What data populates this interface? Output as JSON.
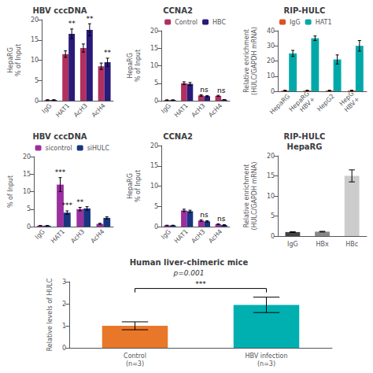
{
  "chart_data": [
    {
      "type": "bar",
      "title": "HBV cccDNA",
      "categories": [
        "IgG",
        "HAT1",
        "AcH3",
        "AcH4"
      ],
      "series": [
        {
          "color": "#b03060",
          "values": [
            0.2,
            11.5,
            13.0,
            8.5
          ],
          "errors": [
            0.05,
            0.8,
            1.0,
            0.8
          ]
        },
        {
          "color": "#2a1a7a",
          "values": [
            0.2,
            16.5,
            17.5,
            9.5
          ],
          "errors": [
            0.05,
            1.2,
            1.5,
            1.0
          ]
        }
      ],
      "ylabel": "HepaRG\n% of Input",
      "ylim": [
        0,
        20
      ],
      "yticks": [
        0,
        5,
        10,
        15,
        20
      ],
      "annotations": [
        {
          "text": "**",
          "category": "HAT1",
          "series": 1
        },
        {
          "text": "**",
          "category": "AcH3",
          "series": 1
        },
        {
          "text": "**",
          "category": "AcH4",
          "series": 1
        }
      ]
    },
    {
      "type": "bar",
      "title": "CCNA2",
      "categories": [
        "IgG",
        "HAT1",
        "AcH3",
        "AcH4"
      ],
      "series": [
        {
          "name": "Control",
          "color": "#b03060",
          "values": [
            0.2,
            5.0,
            1.5,
            1.4
          ],
          "errors": [
            0.05,
            0.4,
            0.2,
            0.15
          ]
        },
        {
          "name": "HBC",
          "color": "#2a1a7a",
          "values": [
            0.2,
            4.8,
            1.3,
            0.3
          ],
          "errors": [
            0.05,
            0.4,
            0.15,
            0.05
          ]
        }
      ],
      "ylabel": "HepaRG\n% of Input",
      "ylim": [
        0,
        20
      ],
      "yticks": [
        0,
        5,
        10,
        15,
        20
      ],
      "legend": "upper right",
      "annotations": [
        {
          "text": "ns",
          "category": "AcH3"
        },
        {
          "text": "ns",
          "category": "AcH4"
        }
      ]
    },
    {
      "type": "bar",
      "title": "RIP-HULC",
      "categories": [
        "HepaRG",
        "HepaRG\nHBV+",
        "HepG2",
        "HepG\nHBV+"
      ],
      "series": [
        {
          "name": "IgG",
          "color": "#e05020",
          "values": [
            0.5,
            0.5,
            0.5,
            0.5
          ],
          "errors": [
            0.2,
            0.2,
            0.2,
            0.2
          ]
        },
        {
          "name": "HAT1",
          "color": "#00a8a8",
          "values": [
            25.0,
            35.0,
            21.0,
            30.0
          ],
          "errors": [
            2.0,
            1.5,
            3.0,
            3.5
          ]
        }
      ],
      "ylabel": "Relative enrichment\n(HULC/GAPDH mRNA)",
      "ylim": [
        0,
        40
      ],
      "yticks": [
        0,
        10,
        20,
        30,
        40
      ],
      "legend": "upper left"
    },
    {
      "type": "bar",
      "title": "HBV cccDNA",
      "categories": [
        "IgG",
        "HAT1",
        "AcH3",
        "AcH4"
      ],
      "series": [
        {
          "name": "sicontrol",
          "color": "#9b2fa0",
          "values": [
            0.3,
            12.0,
            5.0,
            0.8
          ],
          "errors": [
            0.05,
            2.0,
            0.5,
            0.15
          ]
        },
        {
          "name": "siHULC",
          "color": "#1a3580",
          "values": [
            0.3,
            4.0,
            5.2,
            2.5
          ],
          "errors": [
            0.05,
            0.5,
            0.5,
            0.3
          ]
        }
      ],
      "ylabel": "% of Input",
      "ylim": [
        0,
        20
      ],
      "yticks": [
        0,
        5,
        10,
        15,
        20
      ],
      "legend": "upper right",
      "annotations": [
        {
          "text": "***",
          "category": "HAT1",
          "series": 0
        },
        {
          "text": "***",
          "category": "HAT1",
          "series": 1
        },
        {
          "text": "**",
          "category": "AcH3",
          "series": 0
        }
      ]
    },
    {
      "type": "bar",
      "title": "CCNA2",
      "categories": [
        "IgG",
        "HAT1",
        "AcH3",
        "AcH4"
      ],
      "series": [
        {
          "color": "#9b2fa0",
          "values": [
            0.3,
            4.0,
            1.5,
            0.6
          ],
          "errors": [
            0.05,
            0.3,
            0.2,
            0.1
          ]
        },
        {
          "color": "#1a3580",
          "values": [
            0.3,
            3.8,
            1.3,
            0.4
          ],
          "errors": [
            0.05,
            0.25,
            0.15,
            0.08
          ]
        }
      ],
      "ylabel": "HepaRG\n% of Input",
      "ylim": [
        0,
        20
      ],
      "yticks": [
        0,
        5,
        10,
        15,
        20
      ],
      "annotations": [
        {
          "text": "ns",
          "category": "AcH3"
        },
        {
          "text": "ns",
          "category": "AcH4"
        }
      ]
    },
    {
      "type": "bar",
      "title": "RIP-HULC\nHepaRG",
      "categories": [
        "IgG",
        "HBx",
        "HBc"
      ],
      "values": [
        1.0,
        1.1,
        15.0
      ],
      "errors": [
        0.08,
        0.08,
        1.5
      ],
      "colors": [
        "#444444",
        "#888888",
        "#cccccc"
      ],
      "ylabel": "Relative enrichment\n(HULC/GAPDH mRNA)",
      "ylim": [
        0,
        20
      ],
      "yticks": [
        0,
        5,
        10,
        15,
        20
      ]
    },
    {
      "type": "bar",
      "title": "Human liver-chimeric mice",
      "subtitle": "p=0.001",
      "categories": [
        "Control\n(n=3)",
        "HBV infection\n(n=3)"
      ],
      "values": [
        1.0,
        1.95
      ],
      "errors": [
        0.18,
        0.35
      ],
      "colors": [
        "#e8772a",
        "#00b0b0"
      ],
      "ylabel": "Relative levels of HULC",
      "ylim": [
        0,
        3
      ],
      "yticks": [
        0,
        1,
        2,
        3
      ],
      "annotations": [
        {
          "text": "***",
          "categories": [
            "Control\n(n=3)",
            "HBV infection\n(n=3)"
          ]
        }
      ]
    }
  ]
}
